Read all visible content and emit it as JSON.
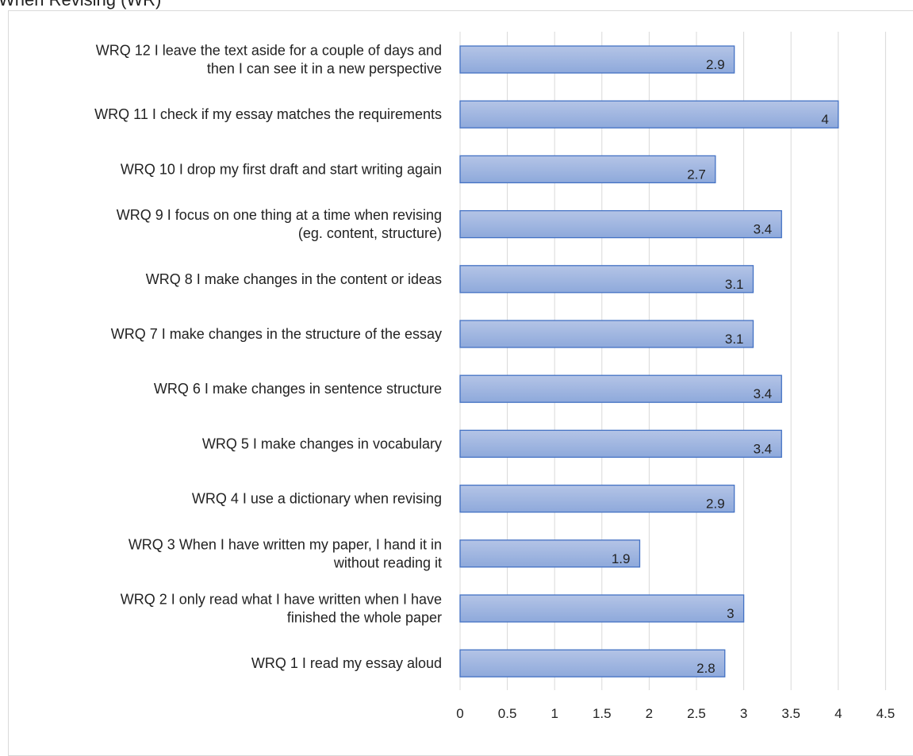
{
  "chart_data": {
    "type": "bar",
    "orientation": "horizontal",
    "title": "When Revising (WR)",
    "categories": [
      "WRQ 1 I read my essay aloud",
      "WRQ 2 I only read what I have written when I have finished the whole paper",
      "WRQ 3 When I have written my paper, I hand it in without reading it",
      "WRQ 4 I use a dictionary when revising",
      "WRQ 5 I make changes in vocabulary",
      "WRQ 6 I make changes in sentence structure",
      "WRQ 7 I make changes in the structure of the essay",
      "WRQ 8 I make changes in the content or ideas",
      "WRQ 9 I focus on one thing at a time when revising (eg. content, structure)",
      "WRQ 10 I drop my first draft and start writing again",
      "WRQ 11 I check if my essay matches the requirements",
      "WRQ 12 I leave the text aside for a couple of days and then I can see it in a new perspective"
    ],
    "category_lines": [
      [
        "WRQ 1 I read my essay aloud"
      ],
      [
        "WRQ 2 I only read what I have written when I have",
        "finished the whole paper"
      ],
      [
        "WRQ 3 When I have written my paper, I hand it in",
        "without reading it"
      ],
      [
        "WRQ 4 I use a dictionary when revising"
      ],
      [
        "WRQ 5 I make changes in vocabulary"
      ],
      [
        "WRQ 6 I make changes in sentence structure"
      ],
      [
        "WRQ 7 I make changes in the structure of the essay"
      ],
      [
        "WRQ 8 I make changes in the content or ideas"
      ],
      [
        "WRQ 9 I focus on one thing at a time when revising",
        "(eg. content, structure)"
      ],
      [
        "WRQ 10 I drop my first draft and start writing again"
      ],
      [
        "WRQ 11 I check if my essay matches the requirements"
      ],
      [
        "WRQ 12 I leave the text aside for a couple of days and",
        "then I can see it in a new perspective"
      ]
    ],
    "values": [
      2.8,
      3,
      1.9,
      2.9,
      3.4,
      3.4,
      3.1,
      3.1,
      3.4,
      2.7,
      4,
      2.9
    ],
    "data_labels": [
      "2.8",
      "3",
      "1.9",
      "2.9",
      "3.4",
      "3.4",
      "3.1",
      "3.1",
      "3.4",
      "2.7",
      "4",
      "2.9"
    ],
    "xlim": [
      0,
      4.5
    ],
    "xticks": [
      "0",
      "0.5",
      "1",
      "1.5",
      "2",
      "2.5",
      "3",
      "3.5",
      "4",
      "4.5"
    ],
    "grid": true,
    "legend": "none",
    "colors": {
      "bar_fill_light": "#b4c4e6",
      "bar_fill_dark": "#8ea9db",
      "bar_stroke": "#4472c4",
      "gridline": "#d9d9d9"
    }
  }
}
